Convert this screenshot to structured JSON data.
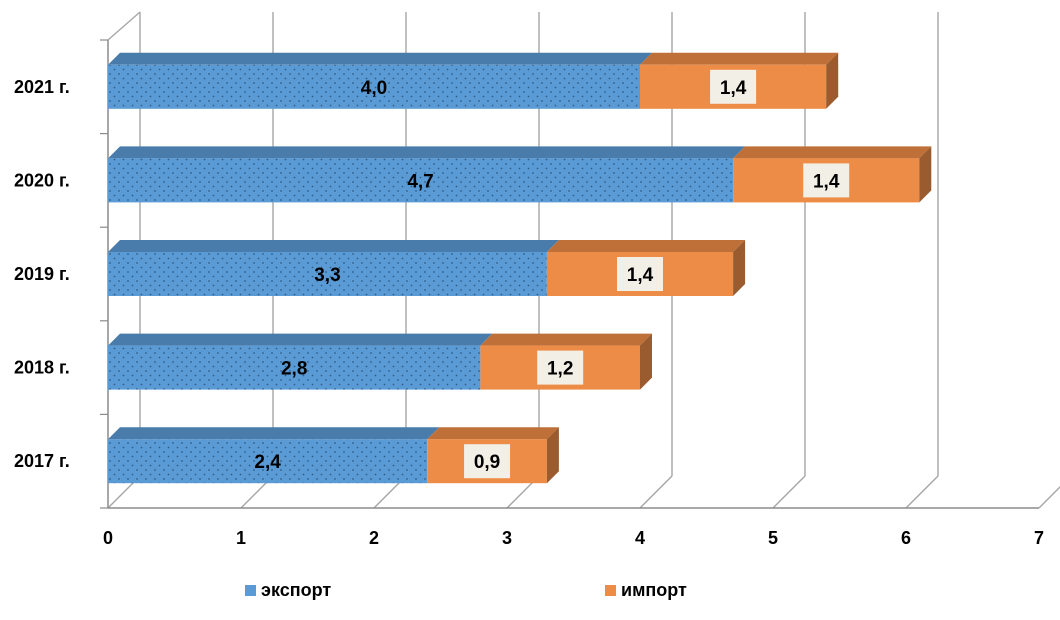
{
  "chart_data": {
    "type": "bar",
    "orientation": "horizontal",
    "stacked": true,
    "three_d": true,
    "categories": [
      "2017 г.",
      "2018 г.",
      "2019 г.",
      "2020 г.",
      "2021 г."
    ],
    "series": [
      {
        "name": "экспорт",
        "values": [
          2.4,
          2.8,
          3.3,
          4.7,
          4.0
        ],
        "labels": [
          "2,4",
          "2,8",
          "3,3",
          "4,7",
          "4,0"
        ],
        "color": "#5b9bd5",
        "pattern": "dotted"
      },
      {
        "name": "импорт",
        "values": [
          0.9,
          1.2,
          1.4,
          1.4,
          1.4
        ],
        "labels": [
          "0,9",
          "1,2",
          "1,4",
          "1,4",
          "1,4"
        ],
        "color": "#ed8c46"
      }
    ],
    "xlim": [
      0,
      7
    ],
    "xticks": [
      "0",
      "1",
      "2",
      "3",
      "4",
      "5",
      "6",
      "7"
    ],
    "grid": true,
    "legend": "bottom"
  }
}
